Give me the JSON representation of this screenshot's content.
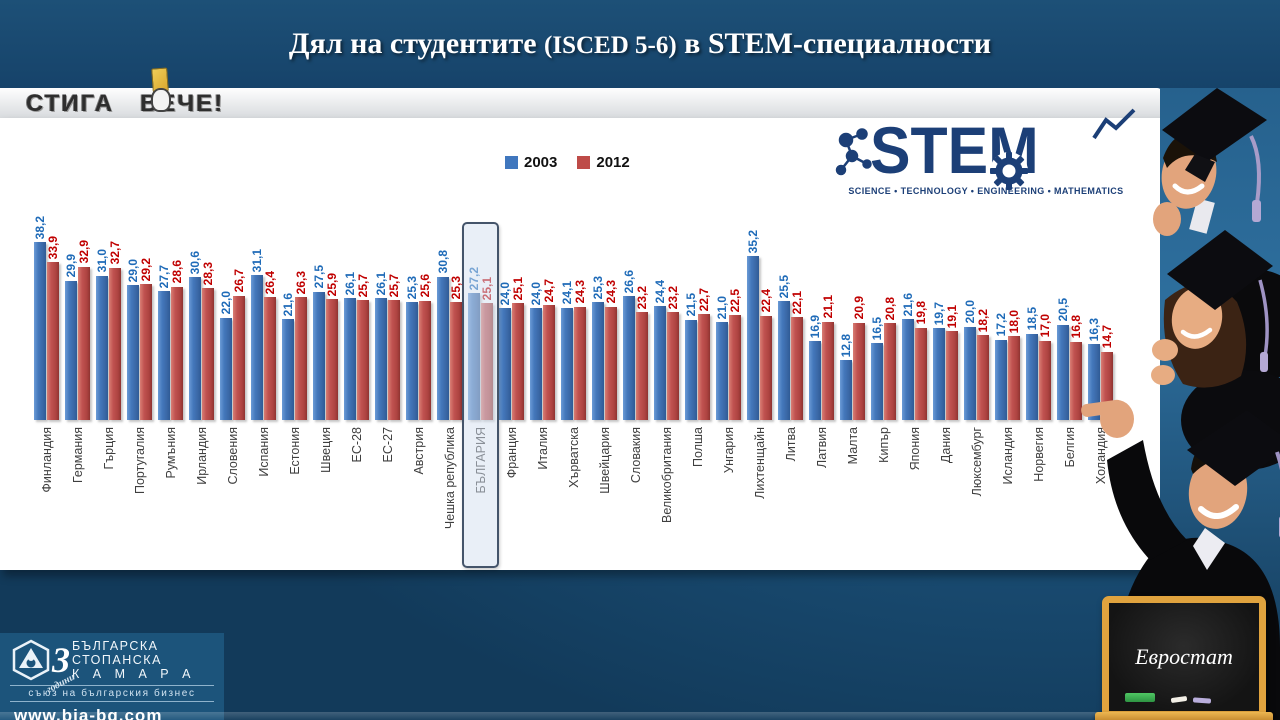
{
  "header": {
    "title_main": "Дял на студентите",
    "title_isced": "(ISCED 5-6)",
    "title_tail": "в STEM-специалности"
  },
  "stamp": {
    "word1": "СТИГА",
    "word2": "ВЕЧЕ!",
    "icon": "yellow-card-hand-icon"
  },
  "chart_data": {
    "type": "bar",
    "legend_position": "top",
    "value_labels": "rotated, one decimal, comma separator",
    "ylim": [
      0,
      40
    ],
    "categories": [
      "Финландия",
      "Германия",
      "Гърция",
      "Португалия",
      "Румъния",
      "Ирландия",
      "Словения",
      "Испания",
      "Естония",
      "Швеция",
      "ЕС-28",
      "ЕС-27",
      "Австрия",
      "Чешка република",
      "БЪЛГАРИЯ",
      "Франция",
      "Италия",
      "Хърватска",
      "Швейцария",
      "Словакия",
      "Великобритания",
      "Полша",
      "Унгария",
      "Лихтенщайн",
      "Литва",
      "Латвия",
      "Малта",
      "Кипър",
      "Япония",
      "Дания",
      "Люксембург",
      "Исландия",
      "Норвегия",
      "Белгия",
      "Холандия"
    ],
    "series": [
      {
        "name": "2003",
        "color": "#4077BE",
        "values": [
          38.2,
          29.9,
          31.0,
          29.0,
          27.7,
          30.6,
          22.0,
          31.1,
          21.6,
          27.5,
          26.1,
          26.1,
          25.3,
          30.8,
          27.2,
          24.0,
          24.0,
          24.1,
          25.3,
          26.6,
          24.4,
          21.5,
          21.0,
          35.2,
          25.5,
          16.9,
          12.8,
          16.5,
          21.6,
          19.7,
          20.0,
          17.2,
          18.5,
          20.5,
          16.3
        ]
      },
      {
        "name": "2012",
        "color": "#BE4B48",
        "values": [
          33.9,
          32.9,
          32.7,
          29.2,
          28.6,
          28.3,
          26.7,
          26.4,
          26.3,
          25.9,
          25.7,
          25.7,
          25.6,
          25.3,
          25.1,
          25.1,
          24.7,
          24.3,
          24.3,
          23.2,
          23.2,
          22.7,
          22.5,
          22.4,
          22.1,
          21.1,
          20.9,
          20.8,
          19.8,
          19.1,
          18.2,
          18.0,
          17.0,
          16.8,
          14.7
        ]
      }
    ],
    "highlight_category": "БЪЛГАРИЯ",
    "value_label_colors": {
      "2003": "#1F6BB8",
      "2012": "#C00000"
    },
    "highlight_style": {
      "fill": "rgba(211,224,239,0.5)",
      "border": "#44546A"
    }
  },
  "stem_logo": {
    "word": "STEM",
    "subtitle": "SCIENCE • TECHNOLOGY • ENGINEERING • MATHEMATICS",
    "color": "#1C3F77",
    "icons": [
      "molecule-icon",
      "gear-icon",
      "growth-check-icon"
    ]
  },
  "graduates": {
    "description": "three smiling graduates in caps peeking from right edge, bottom one pointing at chart",
    "icon": "graduates-photo"
  },
  "source_board": {
    "text": "Евростат",
    "icons": [
      "eraser-icon",
      "chalk-icon"
    ]
  },
  "bia": {
    "anniversary_number": "3",
    "anniversary_word": "години",
    "name_line1": "БЪЛГАРСКА",
    "name_line2": "СТОПАНСКА",
    "name_line3": "К А М А Р А",
    "subtitle": "съюз на българския бизнес",
    "url": "www.bia-bg.com",
    "icon": "bia-hexagon-logo"
  }
}
